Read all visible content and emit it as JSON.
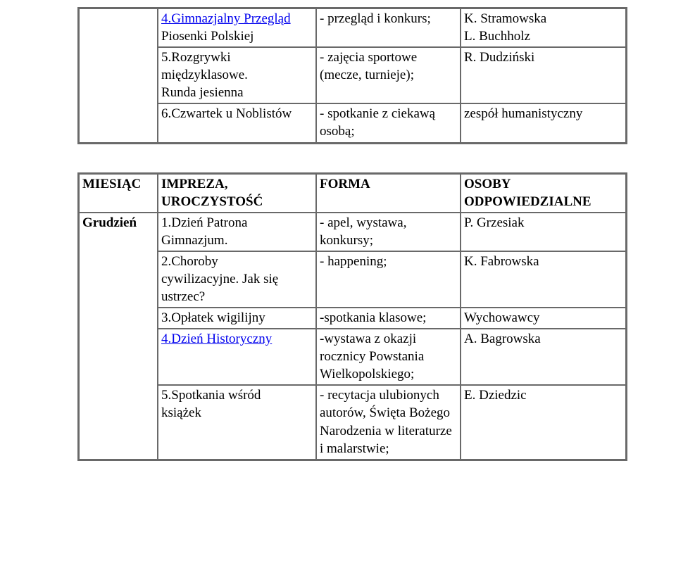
{
  "colors": {
    "text": "#000000",
    "link": "#0000ee",
    "border": "#696969",
    "background": "#ffffff"
  },
  "typography": {
    "font_family": "Times New Roman",
    "base_fontsize_pt": 14
  },
  "table1": {
    "rows": [
      {
        "col1_a": "4.Gimnazjalny Przegląd",
        "col1_b": "Piosenki Polskiej",
        "col2": "- przegląd i konkurs;",
        "col3_a": "K. Stramowska",
        "col3_b": "L. Buchholz"
      },
      {
        "col1_a": "5.Rozgrywki",
        "col1_b": "  międzyklasowe.",
        "col1_c": "Runda jesienna",
        "col2_a": "- zajęcia sportowe",
        "col2_b": "(mecze, turnieje);",
        "col3": "R. Dudziński"
      },
      {
        "col1": "6.Czwartek u Noblistów",
        "col2_a": "- spotkanie z ciekawą",
        "col2_b": "osobą;",
        "col3": "zespół humanistyczny"
      }
    ]
  },
  "table2": {
    "header": {
      "c0": "MIESIĄC",
      "c1_a": "IMPREZA,",
      "c1_b": "UROCZYSTOŚĆ",
      "c2": "FORMA",
      "c3_a": "OSOBY",
      "c3_b": "ODPOWIEDZIALNE"
    },
    "month": "Grudzień",
    "rows": [
      {
        "c1_a": "1.Dzień Patrona",
        "c1_b": "Gimnazjum.",
        "c2_a": "- apel, wystawa,",
        "c2_b": "konkursy;",
        "c3": "P. Grzesiak"
      },
      {
        "c1_a": "2.Choroby",
        "c1_b": "cywilizacyjne. Jak się",
        "c1_c": "ustrzec?",
        "c2": "- happening;",
        "c3": "K. Fabrowska"
      },
      {
        "c1": "3.Opłatek wigilijny",
        "c2": "-spotkania klasowe;",
        "c3": "Wychowawcy"
      },
      {
        "c1": "4.Dzień Historyczny",
        "c2_a": "-wystawa z okazji",
        "c2_b": "rocznicy Powstania",
        "c2_c": "Wielkopolskiego;",
        "c3": "A. Bagrowska"
      },
      {
        "c1_a": "5.Spotkania wśród",
        "c1_b": "książek",
        "c2_a": "- recytacja ulubionych",
        "c2_b": "autorów, Święta Bożego",
        "c2_c": "Narodzenia w literaturze",
        "c2_d": "i malarstwie;",
        "c3": "E. Dziedzic"
      }
    ]
  }
}
